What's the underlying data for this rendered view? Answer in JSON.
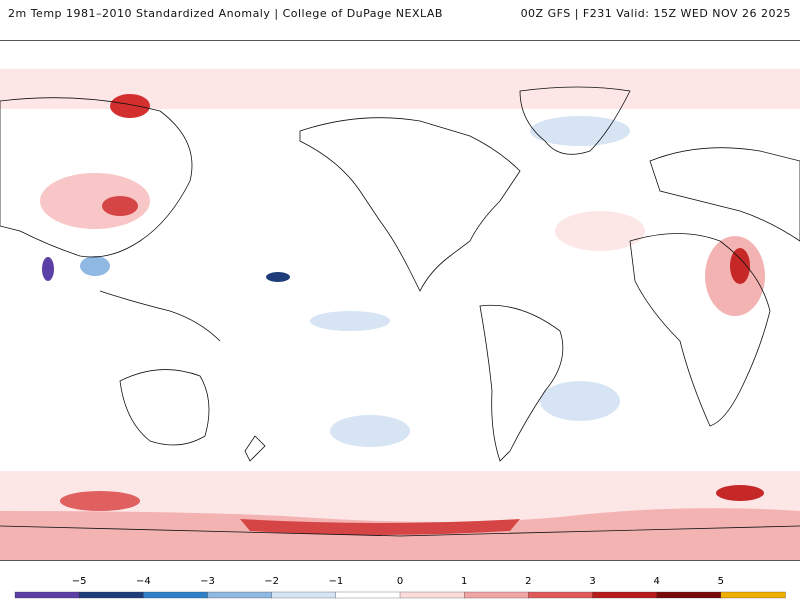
{
  "header": {
    "left_title": "2m Temp 1981–2010 Standardized Anomaly | College of DuPage NEXLAB",
    "right_title": "00Z GFS | F231 Valid: 15Z WED NOV 26 2025"
  },
  "colorbar": {
    "ticks": [
      "−5",
      "−4",
      "−3",
      "−2",
      "−1",
      "0",
      "1",
      "2",
      "3",
      "4",
      "5"
    ],
    "colors": [
      "#5b3ea6",
      "#1f3d7a",
      "#2f7fc9",
      "#8fb9e3",
      "#d6e4f4",
      "#ffffff",
      "#fbdcdc",
      "#f1a6a6",
      "#e05a5a",
      "#b71c1c",
      "#7a0a0a",
      "#f0b000"
    ]
  },
  "map": {
    "ocean_color": "#ffffff",
    "coast_color": "#111111"
  }
}
